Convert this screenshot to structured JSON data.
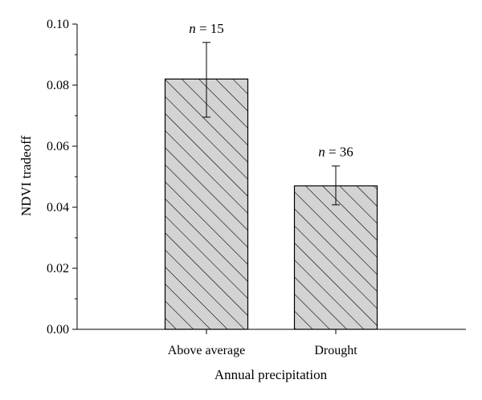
{
  "chart_data": {
    "type": "bar",
    "categories": [
      "Above average",
      "Drought"
    ],
    "values": [
      0.082,
      0.047
    ],
    "error_bars": {
      "upper": [
        0.094,
        0.0535
      ],
      "lower": [
        0.0695,
        0.0408
      ]
    },
    "bar_annotations": [
      {
        "italic": "n",
        "rest": " = 15"
      },
      {
        "italic": "n",
        "rest": " = 36"
      }
    ],
    "xlabel": "Annual precipitation",
    "ylabel": "NDVI tradeoff",
    "ylim": [
      0,
      0.1
    ],
    "yticks": [
      0,
      0.02,
      0.04,
      0.06,
      0.08,
      0.1
    ],
    "ytick_labels": [
      "0.00",
      "0.02",
      "0.04",
      "0.06",
      "0.08",
      "0.10"
    ],
    "grid": false,
    "legend": "none",
    "bar_fill": "#d3d3d3",
    "bar_pattern": "diagonal hatch",
    "ink_color": "#000000"
  }
}
